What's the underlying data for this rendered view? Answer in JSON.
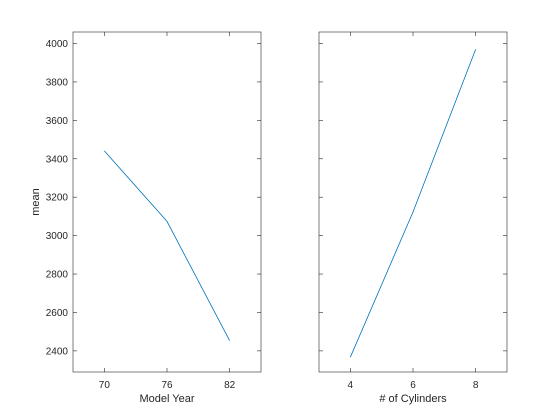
{
  "chart_data": [
    {
      "type": "line",
      "xlabel": "Model Year",
      "ylabel": "mean",
      "xlim": [
        67,
        85
      ],
      "ylim": [
        2290,
        4060
      ],
      "xticks": [
        70,
        76,
        82
      ],
      "yticks": [
        2400,
        2600,
        2800,
        3000,
        3200,
        3400,
        3600,
        3800,
        4000
      ],
      "show_y_tick_labels": true,
      "x": [
        70,
        76,
        82
      ],
      "y": [
        3441,
        3074,
        2453
      ],
      "grid": false,
      "color": "#0072bd"
    },
    {
      "type": "line",
      "xlabel": "# of Cylinders",
      "ylabel": "",
      "xlim": [
        3,
        9
      ],
      "ylim": [
        2290,
        4060
      ],
      "xticks": [
        4,
        6,
        8
      ],
      "yticks": [
        2400,
        2600,
        2800,
        3000,
        3200,
        3400,
        3600,
        3800,
        4000
      ],
      "show_y_tick_labels": false,
      "x": [
        4,
        6,
        8
      ],
      "y": [
        2367,
        3123,
        3970
      ],
      "grid": false,
      "color": "#0072bd"
    }
  ]
}
